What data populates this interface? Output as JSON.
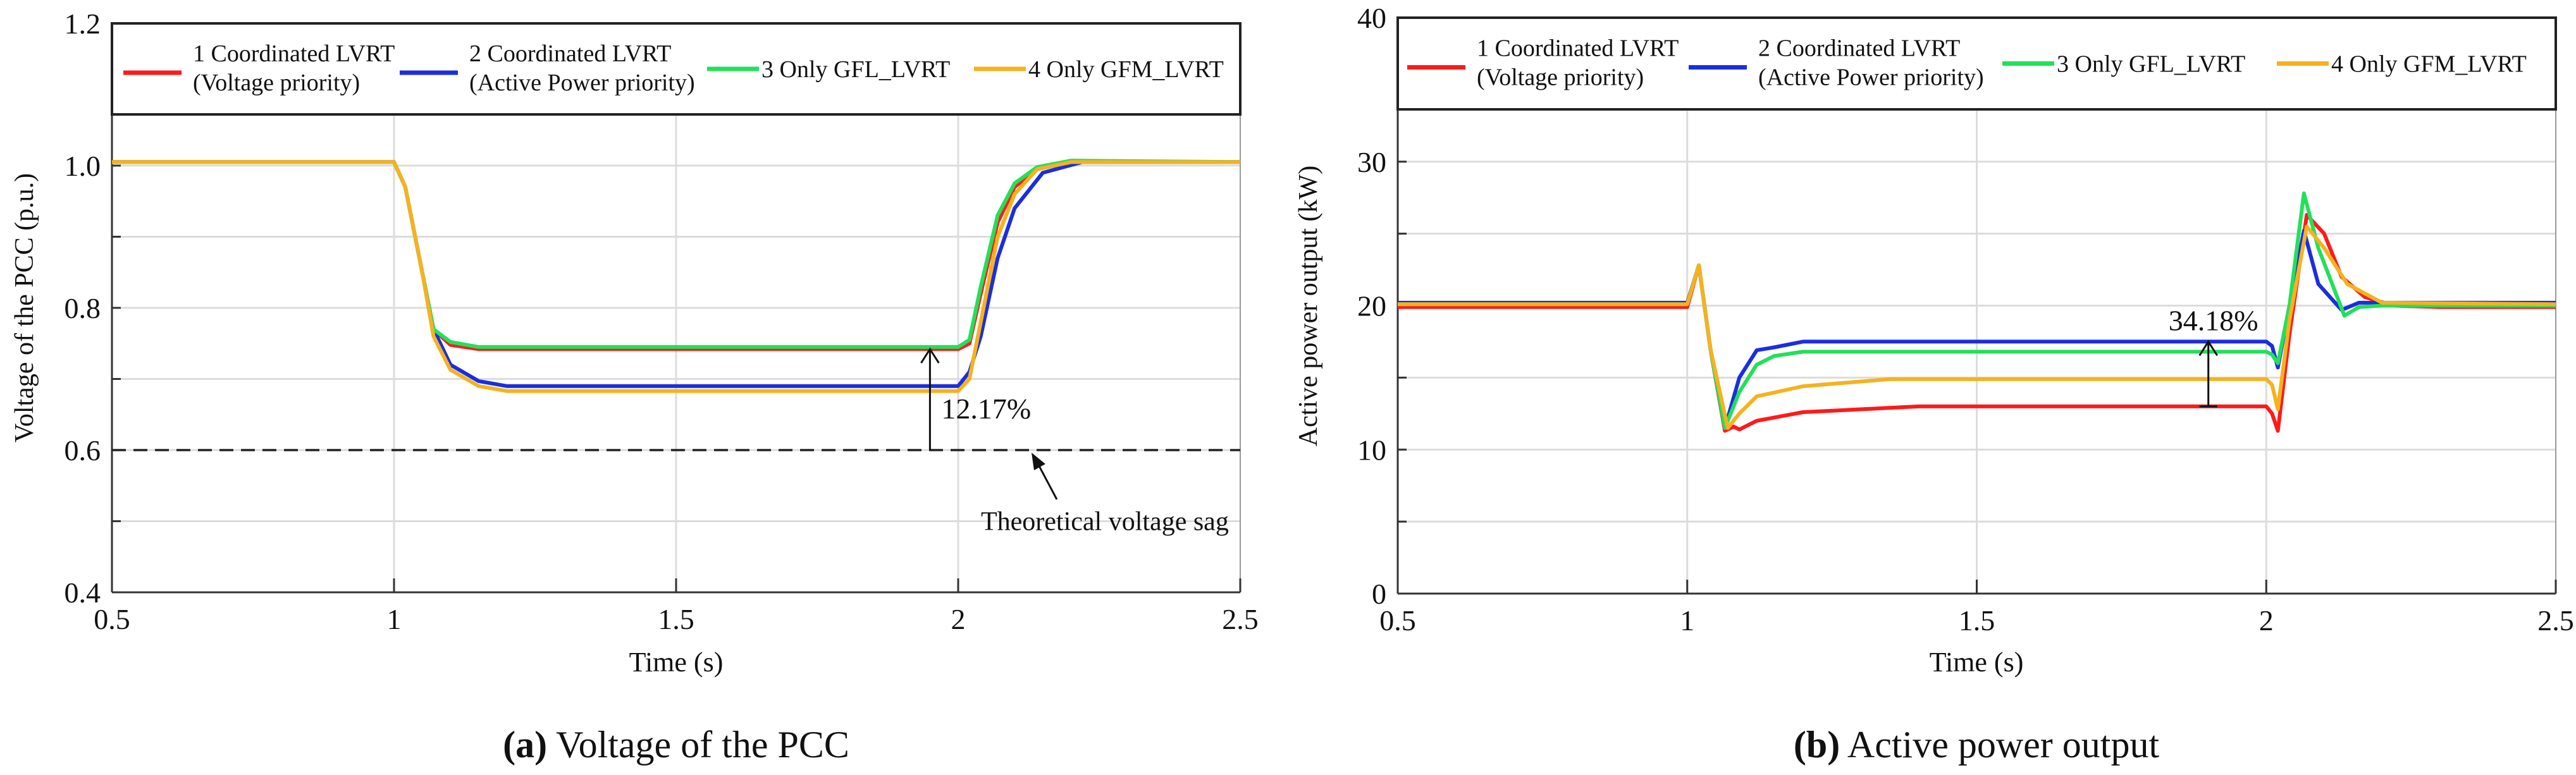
{
  "chart_data": [
    {
      "type": "line",
      "caption_letter": "(a)",
      "caption_text": " Voltage of the PCC",
      "xlabel": "Time (s)",
      "ylabel": "Voltage of the PCC (p.u.)",
      "xlim": [
        0.5,
        2.5
      ],
      "ylim": [
        0.4,
        1.2
      ],
      "xticks": [
        0.5,
        1,
        1.5,
        2,
        2.5
      ],
      "xtick_labels": [
        "0.5",
        "1",
        "1.5",
        "2",
        "2.5"
      ],
      "yticks": [
        0.4,
        0.6,
        0.8,
        1.0,
        1.2
      ],
      "ytick_labels": [
        "0.4",
        "0.6",
        "0.8",
        "1.0",
        "1.2"
      ],
      "ygrid": [
        0.5,
        0.6,
        0.7,
        0.8,
        0.9,
        1.0,
        1.1
      ],
      "xgrid": [
        1,
        1.5,
        2
      ],
      "grid": true,
      "legend_position": "top",
      "series": [
        {
          "name_line1": "1 Coordinated LVRT",
          "name_line2": "(Voltage priority)",
          "color": "#ff1a1a",
          "x": [
            0.5,
            1.0,
            1.02,
            1.05,
            1.07,
            1.1,
            1.15,
            2.0,
            2.02,
            2.04,
            2.07,
            2.1,
            2.14,
            2.2,
            2.5
          ],
          "y": [
            1.005,
            1.005,
            0.97,
            0.85,
            0.77,
            0.748,
            0.742,
            0.742,
            0.75,
            0.82,
            0.92,
            0.97,
            0.995,
            1.005,
            1.005
          ]
        },
        {
          "name_line1": "2 Coordinated LVRT",
          "name_line2": "(Active Power priority)",
          "color": "#1a2ee0",
          "x": [
            0.5,
            1.0,
            1.02,
            1.05,
            1.07,
            1.1,
            1.15,
            1.2,
            2.0,
            2.02,
            2.04,
            2.07,
            2.1,
            2.15,
            2.22,
            2.5
          ],
          "y": [
            1.005,
            1.005,
            0.97,
            0.85,
            0.77,
            0.72,
            0.697,
            0.69,
            0.69,
            0.71,
            0.76,
            0.87,
            0.94,
            0.99,
            1.005,
            1.005
          ]
        },
        {
          "name_line1": "3 Only GFL_LVRT",
          "name_line2": "",
          "color": "#22e05a",
          "x": [
            0.5,
            1.0,
            1.02,
            1.05,
            1.07,
            1.1,
            1.15,
            2.0,
            2.02,
            2.04,
            2.07,
            2.1,
            2.14,
            2.2,
            2.5
          ],
          "y": [
            1.005,
            1.005,
            0.97,
            0.85,
            0.77,
            0.752,
            0.745,
            0.745,
            0.755,
            0.83,
            0.93,
            0.975,
            0.998,
            1.007,
            1.005
          ]
        },
        {
          "name_line1": "4 Only GFM_LVRT",
          "name_line2": "",
          "color": "#f5b21f",
          "x": [
            0.5,
            1.0,
            1.02,
            1.05,
            1.07,
            1.1,
            1.15,
            1.2,
            2.0,
            2.02,
            2.04,
            2.07,
            2.1,
            2.14,
            2.2,
            2.5
          ],
          "y": [
            1.005,
            1.005,
            0.97,
            0.85,
            0.76,
            0.713,
            0.69,
            0.683,
            0.683,
            0.7,
            0.78,
            0.9,
            0.96,
            0.995,
            1.005,
            1.005
          ]
        }
      ],
      "reference_line": {
        "y": 0.6,
        "style": "dashed",
        "label": "Theoretical voltage sag"
      },
      "annotation": {
        "label": "12.17%",
        "x": 1.95,
        "y_from": 0.6,
        "y_to": 0.742
      }
    },
    {
      "type": "line",
      "caption_letter": "(b)",
      "caption_text": " Active power output",
      "xlabel": "Time (s)",
      "ylabel": "Active power output (kW)",
      "xlim": [
        0.5,
        2.5
      ],
      "ylim": [
        0,
        40
      ],
      "xticks": [
        0.5,
        1,
        1.5,
        2,
        2.5
      ],
      "xtick_labels": [
        "0.5",
        "1",
        "1.5",
        "2",
        "2.5"
      ],
      "yticks": [
        0,
        10,
        20,
        30,
        40
      ],
      "ytick_labels": [
        "0",
        "10",
        "20",
        "30",
        "40"
      ],
      "ygrid": [
        5,
        10,
        15,
        20,
        25,
        30,
        35
      ],
      "xgrid": [
        1,
        1.5,
        2
      ],
      "grid": true,
      "legend_position": "top",
      "series": [
        {
          "name_line1": "1 Coordinated LVRT",
          "name_line2": "(Voltage priority)",
          "color": "#ff1a1a",
          "x": [
            0.5,
            1.0,
            1.02,
            1.04,
            1.065,
            1.08,
            1.09,
            1.12,
            1.2,
            1.4,
            2.0,
            2.01,
            2.02,
            2.04,
            2.07,
            2.1,
            2.13,
            2.17,
            2.22,
            2.3,
            2.5
          ],
          "y": [
            19.9,
            19.9,
            22.8,
            17,
            11.3,
            11.6,
            11.4,
            12,
            12.6,
            13,
            13,
            12.5,
            11.3,
            18,
            26.3,
            25,
            22,
            20.6,
            20,
            19.9,
            19.9
          ]
        },
        {
          "name_line1": "2 Coordinated LVRT",
          "name_line2": "(Active Power priority)",
          "color": "#1a2ee0",
          "x": [
            0.5,
            1.0,
            1.02,
            1.04,
            1.065,
            1.09,
            1.12,
            1.15,
            1.2,
            2.0,
            2.01,
            2.02,
            2.04,
            2.065,
            2.09,
            2.13,
            2.16,
            2.2,
            2.5
          ],
          "y": [
            20.2,
            20.2,
            22.8,
            17,
            11.5,
            15,
            16.9,
            17.1,
            17.5,
            17.5,
            17.2,
            15.7,
            20,
            25.2,
            21.5,
            19.7,
            20.2,
            20.2,
            20.2
          ]
        },
        {
          "name_line1": "3 Only GFL_LVRT",
          "name_line2": "",
          "color": "#22e05a",
          "x": [
            0.5,
            1.0,
            1.02,
            1.04,
            1.065,
            1.09,
            1.12,
            1.15,
            1.2,
            2.0,
            2.01,
            2.02,
            2.04,
            2.065,
            2.09,
            2.135,
            2.16,
            2.2,
            2.5
          ],
          "y": [
            20.1,
            20.1,
            22.8,
            17,
            11.5,
            14,
            15.9,
            16.5,
            16.8,
            16.8,
            16.6,
            16,
            20,
            27.8,
            24,
            19.3,
            19.9,
            20,
            20
          ]
        },
        {
          "name_line1": "4 Only GFM_LVRT",
          "name_line2": "",
          "color": "#f5b21f",
          "x": [
            0.5,
            1.0,
            1.02,
            1.04,
            1.07,
            1.09,
            1.12,
            1.2,
            1.35,
            2.0,
            2.01,
            2.02,
            2.04,
            2.07,
            2.1,
            2.14,
            2.2,
            2.5
          ],
          "y": [
            20.1,
            20.1,
            22.8,
            17,
            11.5,
            12.5,
            13.7,
            14.4,
            14.9,
            14.9,
            14.5,
            12.8,
            19,
            25.5,
            24,
            21.5,
            20.2,
            20.1
          ]
        }
      ],
      "annotation": {
        "label": "34.18%",
        "x": 1.9,
        "y_from": 13,
        "y_to": 17.5
      }
    }
  ]
}
